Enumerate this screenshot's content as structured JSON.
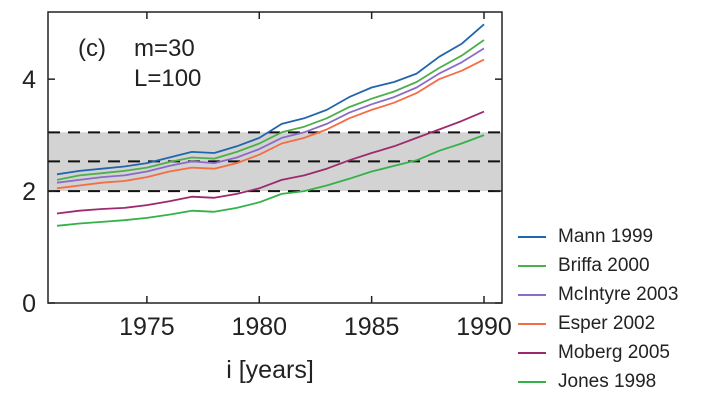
{
  "chart_data": {
    "type": "line",
    "panel_label": "(c)",
    "annotation_lines": [
      "m=30",
      "L=100"
    ],
    "xlabel": "i [years]",
    "ylabel": "",
    "xlim": [
      1970.6,
      1990.8
    ],
    "ylim": [
      0,
      5.2
    ],
    "x_ticks": [
      1975,
      1980,
      1985,
      1990
    ],
    "y_ticks": [
      0,
      2,
      4
    ],
    "grid": false,
    "legend_position": "right-bottom, outside plot",
    "reference_lines": [
      2.0,
      2.53,
      3.05
    ],
    "band": [
      2.0,
      3.05
    ],
    "band_color": "#d3d3d3",
    "x": [
      1971,
      1972,
      1973,
      1974,
      1975,
      1976,
      1977,
      1978,
      1979,
      1980,
      1981,
      1982,
      1983,
      1984,
      1985,
      1986,
      1987,
      1988,
      1989,
      1990
    ],
    "series": [
      {
        "name": "Mann 1999",
        "color": "#2166ac",
        "values": [
          2.3,
          2.36,
          2.4,
          2.44,
          2.5,
          2.6,
          2.7,
          2.68,
          2.8,
          2.95,
          3.2,
          3.3,
          3.45,
          3.68,
          3.85,
          3.95,
          4.1,
          4.4,
          4.63,
          4.98
        ]
      },
      {
        "name": "Briffa 2000",
        "color": "#4daf4a",
        "values": [
          2.2,
          2.28,
          2.32,
          2.36,
          2.42,
          2.52,
          2.6,
          2.58,
          2.7,
          2.85,
          3.05,
          3.15,
          3.3,
          3.5,
          3.65,
          3.78,
          3.95,
          4.2,
          4.42,
          4.7
        ]
      },
      {
        "name": "McIntyre 2003",
        "color": "#8a6cc8",
        "values": [
          2.15,
          2.2,
          2.25,
          2.28,
          2.35,
          2.45,
          2.53,
          2.5,
          2.6,
          2.75,
          2.95,
          3.05,
          3.2,
          3.4,
          3.55,
          3.68,
          3.85,
          4.1,
          4.3,
          4.55
        ]
      },
      {
        "name": "Esper 2002",
        "color": "#f46d43",
        "values": [
          2.05,
          2.1,
          2.15,
          2.18,
          2.25,
          2.35,
          2.42,
          2.4,
          2.5,
          2.65,
          2.85,
          2.95,
          3.1,
          3.3,
          3.45,
          3.58,
          3.75,
          4.0,
          4.15,
          4.35
        ]
      },
      {
        "name": "Moberg 2005",
        "color": "#9e2a6e",
        "values": [
          1.6,
          1.65,
          1.68,
          1.7,
          1.75,
          1.82,
          1.9,
          1.88,
          1.95,
          2.05,
          2.2,
          2.28,
          2.4,
          2.55,
          2.68,
          2.8,
          2.95,
          3.1,
          3.25,
          3.42
        ]
      },
      {
        "name": "Jones 1998",
        "color": "#33b24a",
        "values": [
          1.38,
          1.42,
          1.45,
          1.48,
          1.52,
          1.58,
          1.65,
          1.63,
          1.7,
          1.8,
          1.95,
          2.0,
          2.1,
          2.22,
          2.35,
          2.45,
          2.55,
          2.72,
          2.85,
          3.0
        ]
      }
    ]
  }
}
